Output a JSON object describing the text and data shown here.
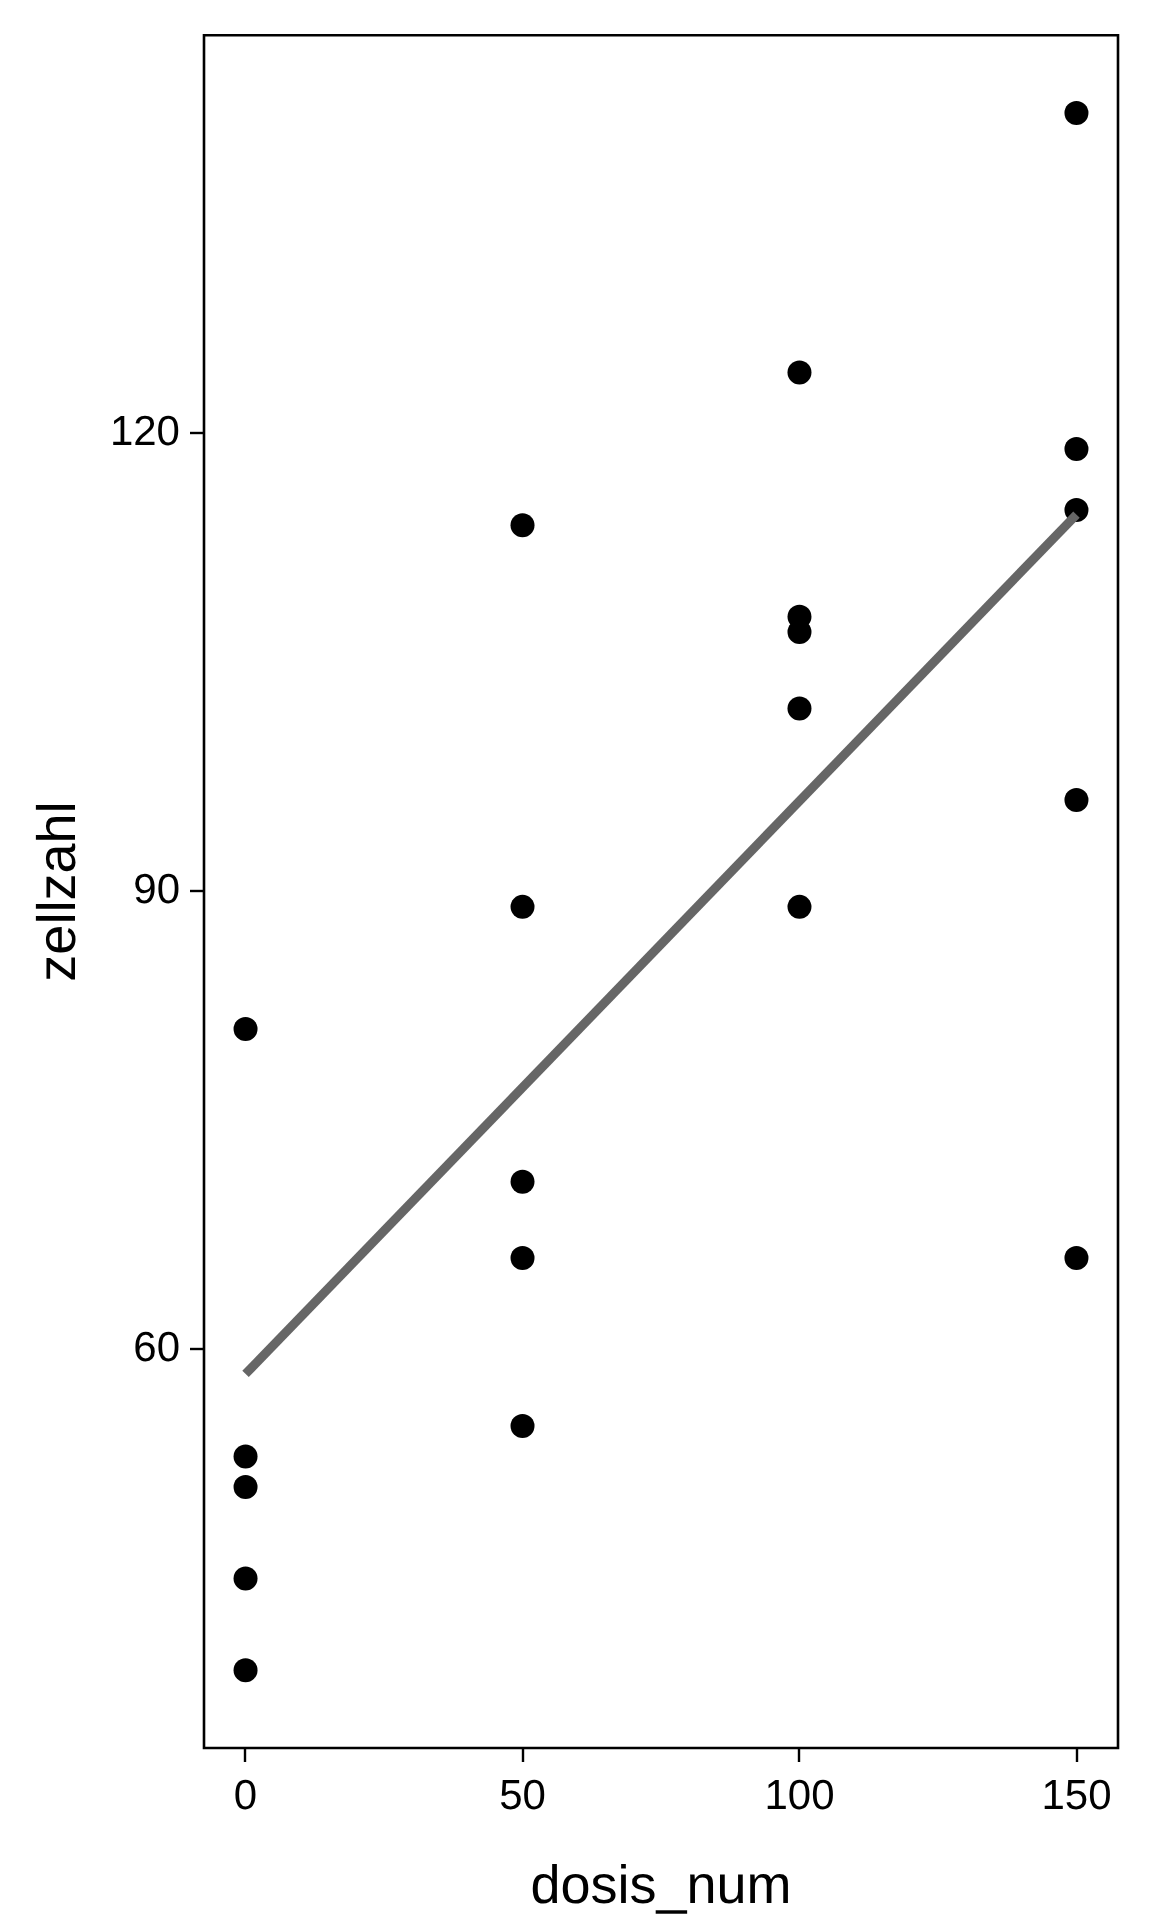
{
  "chart_data": {
    "type": "scatter",
    "xlabel": "dosis_num",
    "ylabel": "zellzahl",
    "series": [
      {
        "color": "#000000",
        "x": [
          0,
          0,
          0,
          0,
          0,
          50,
          50,
          50,
          50,
          50,
          100,
          100,
          100,
          100,
          100,
          150,
          150,
          150,
          150,
          150
        ],
        "values": [
          81,
          53,
          51,
          45,
          39,
          114,
          89,
          71,
          66,
          55,
          124,
          108,
          107,
          102,
          89,
          141,
          119,
          115,
          96,
          66
        ]
      },
      {
        "type": "line",
        "color": "#666666",
        "marker": "none",
        "x": [
          0,
          150
        ],
        "values": [
          58.4,
          114.7
        ]
      }
    ],
    "marker": "circle",
    "line_style": "solid",
    "xlim": [
      -7.5,
      157.5
    ],
    "xticks": [
      0,
      50,
      100,
      150
    ],
    "ylim": [
      33.9,
      146.1
    ],
    "yticks": [
      60,
      90,
      120
    ]
  }
}
